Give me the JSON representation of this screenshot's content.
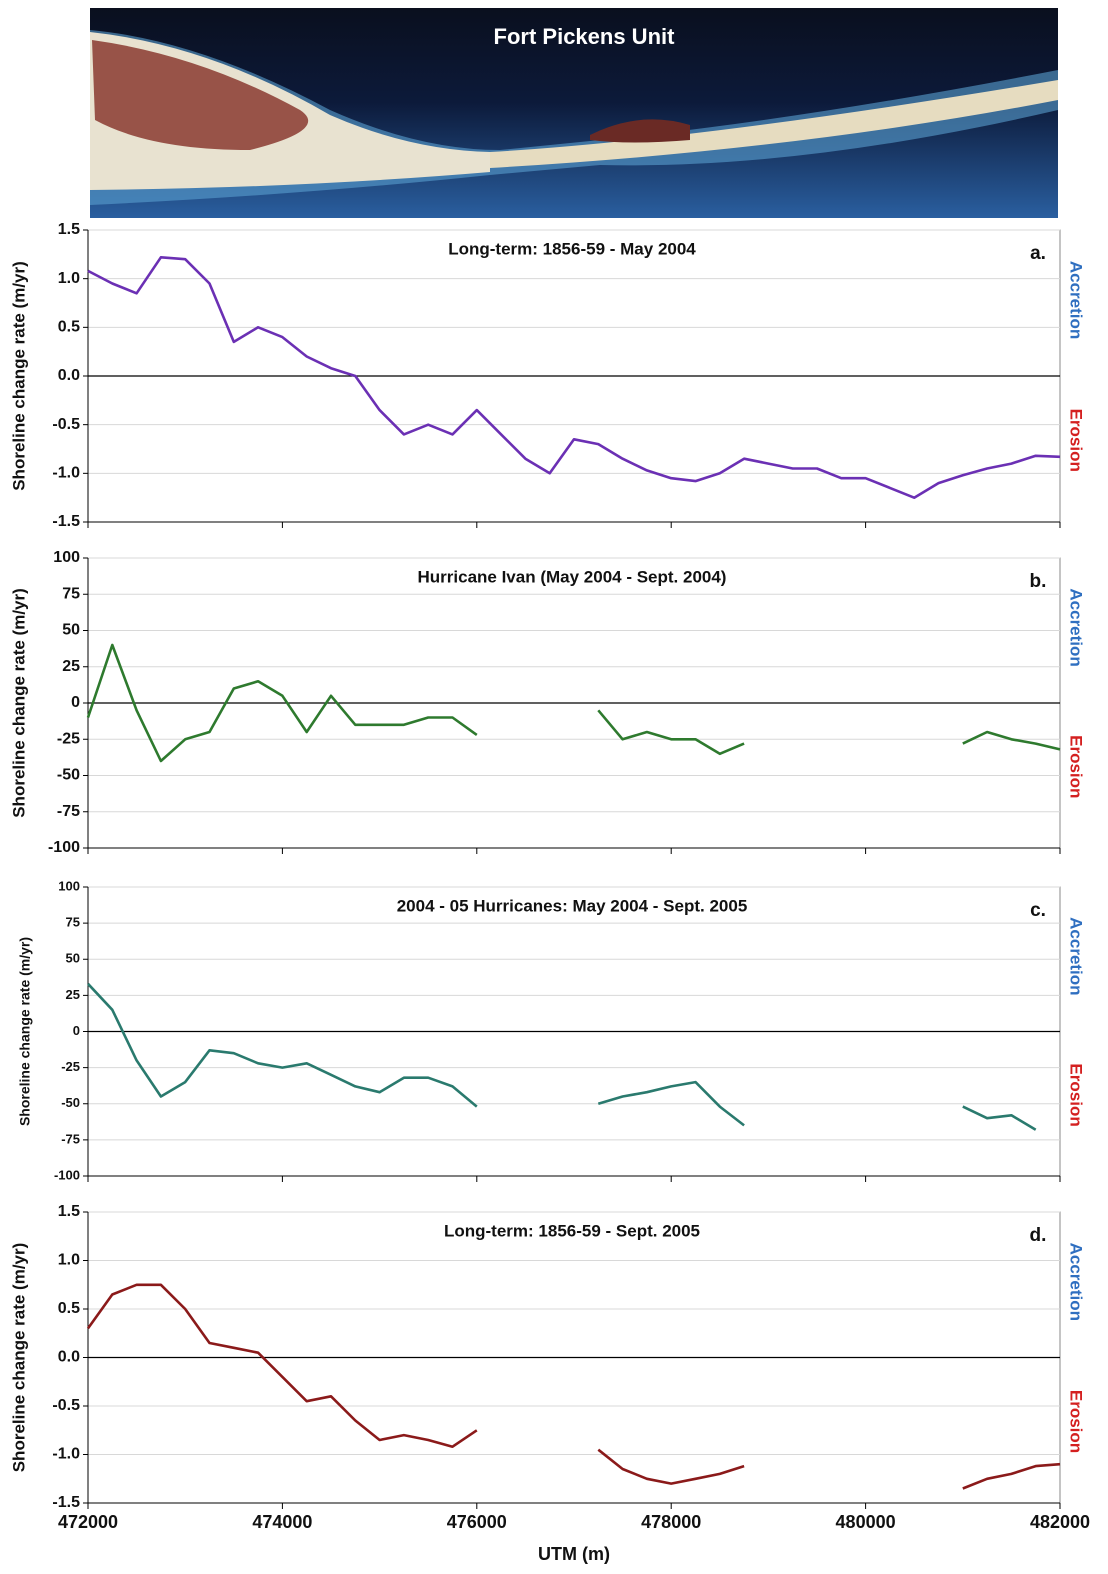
{
  "image": {
    "title": "Fort Pickens Unit"
  },
  "chart_data": [
    {
      "type": "line",
      "title": "Long-term: 1856-59 - May 2004",
      "panel_label": "a.",
      "ylabel": "Shoreline change rate (m/yr)",
      "accretion_label": "Accretion",
      "erosion_label": "Erosion",
      "x": [
        472000,
        472250,
        472500,
        472750,
        473000,
        473250,
        473500,
        473750,
        474000,
        474250,
        474500,
        474750,
        475000,
        475250,
        475500,
        475750,
        476000,
        476250,
        476500,
        476750,
        477000,
        477250,
        477500,
        477750,
        478000,
        478250,
        478500,
        478750,
        479000,
        479250,
        479500,
        479750,
        480000,
        480250,
        480500,
        480750,
        481000,
        481250,
        481500,
        481750,
        482000
      ],
      "series": [
        {
          "color": "#6b30b4",
          "values": [
            1.08,
            0.95,
            0.85,
            1.22,
            1.2,
            0.95,
            0.35,
            0.5,
            0.4,
            0.2,
            0.08,
            0.0,
            -0.35,
            -0.6,
            -0.5,
            -0.6,
            -0.35,
            -0.6,
            -0.85,
            -1.0,
            -0.65,
            -0.7,
            -0.85,
            -0.97,
            -1.05,
            -1.08,
            -1.0,
            -0.85,
            -0.9,
            -0.95,
            -0.95,
            -1.05,
            -1.05,
            -1.15,
            -1.25,
            -1.1,
            -1.02,
            -0.95,
            -0.9,
            -0.82,
            -0.83
          ]
        }
      ],
      "xlim": [
        472000,
        482000
      ],
      "xticks": [
        472000,
        474000,
        476000,
        478000,
        480000,
        482000
      ],
      "ylim": [
        -1.5,
        1.5
      ],
      "yticks": [
        -1.5,
        {
          "value": -1.0,
          "label": "-1.0"
        },
        -0.5,
        {
          "value": 0.0,
          "label": "0.0"
        },
        0.5,
        {
          "value": 1.0,
          "label": "1.0"
        },
        1.5
      ],
      "grid": true,
      "show_xtick_labels": false
    },
    {
      "type": "line",
      "title": "Hurricane Ivan (May 2004 - Sept. 2004)",
      "panel_label": "b.",
      "ylabel": "Shoreline change rate (m/yr)",
      "accretion_label": "Accretion",
      "erosion_label": "Erosion",
      "x": [
        472000,
        472250,
        472500,
        472750,
        473000,
        473250,
        473500,
        473750,
        474000,
        474250,
        474500,
        474750,
        475000,
        475250,
        475500,
        475750,
        476000,
        476250,
        476500,
        476750,
        477000,
        477250,
        477500,
        477750,
        478000,
        478250,
        478500,
        478750,
        479000,
        479250,
        479500,
        479750,
        480000,
        480250,
        480500,
        480750,
        481000,
        481250,
        481500,
        481750,
        482000
      ],
      "series": [
        {
          "color": "#2e7a2e",
          "values": [
            -10,
            40,
            -5,
            -40,
            -25,
            -20,
            10,
            15,
            5,
            -20,
            5,
            -15,
            -15,
            -15,
            -10,
            -10,
            -22,
            null,
            null,
            null,
            null,
            -5,
            -25,
            -20,
            -25,
            -25,
            -35,
            -28,
            null,
            null,
            null,
            null,
            null,
            null,
            null,
            null,
            -28,
            -20,
            -25,
            -28,
            -32
          ]
        }
      ],
      "xlim": [
        472000,
        482000
      ],
      "xticks": [
        472000,
        474000,
        476000,
        478000,
        480000,
        482000
      ],
      "ylim": [
        -100,
        100
      ],
      "yticks": [
        -100,
        -75,
        -50,
        -25,
        0,
        25,
        50,
        75,
        100
      ],
      "grid": true,
      "show_xtick_labels": false
    },
    {
      "type": "line",
      "title": "2004 - 05 Hurricanes: May 2004 - Sept. 2005",
      "panel_label": "c.",
      "ylabel": "Shoreline change rate (m/yr)",
      "accretion_label": "Accretion",
      "erosion_label": "Erosion",
      "x": [
        472000,
        472250,
        472500,
        472750,
        473000,
        473250,
        473500,
        473750,
        474000,
        474250,
        474500,
        474750,
        475000,
        475250,
        475500,
        475750,
        476000,
        476250,
        476500,
        476750,
        477000,
        477250,
        477500,
        477750,
        478000,
        478250,
        478500,
        478750,
        479000,
        479250,
        479500,
        479750,
        480000,
        480250,
        480500,
        480750,
        481000,
        481250,
        481500,
        481750,
        482000
      ],
      "series": [
        {
          "color": "#2a7a6e",
          "values": [
            33,
            15,
            -20,
            -45,
            -35,
            -13,
            -15,
            -22,
            -25,
            -22,
            -30,
            -38,
            -42,
            -32,
            -32,
            -38,
            -52,
            null,
            null,
            null,
            null,
            -50,
            -45,
            -42,
            -38,
            -35,
            -52,
            -65,
            null,
            null,
            null,
            null,
            null,
            null,
            null,
            null,
            -52,
            -60,
            -58,
            -68,
            null
          ]
        }
      ],
      "xlim": [
        472000,
        482000
      ],
      "xticks": [
        472000,
        474000,
        476000,
        478000,
        480000,
        482000
      ],
      "ylim": [
        -100,
        100
      ],
      "yticks": [
        -100,
        -75,
        -50,
        -25,
        0,
        25,
        50,
        75,
        100
      ],
      "grid": true,
      "show_xtick_labels": false
    },
    {
      "type": "line",
      "title": "Long-term: 1856-59 - Sept. 2005",
      "panel_label": "d.",
      "ylabel": "Shoreline change rate (m/yr)",
      "xlabel": "UTM (m)",
      "accretion_label": "Accretion",
      "erosion_label": "Erosion",
      "x": [
        472000,
        472250,
        472500,
        472750,
        473000,
        473250,
        473500,
        473750,
        474000,
        474250,
        474500,
        474750,
        475000,
        475250,
        475500,
        475750,
        476000,
        476250,
        476500,
        476750,
        477000,
        477250,
        477500,
        477750,
        478000,
        478250,
        478500,
        478750,
        479000,
        479250,
        479500,
        479750,
        480000,
        480250,
        480500,
        480750,
        481000,
        481250,
        481500,
        481750,
        482000
      ],
      "series": [
        {
          "color": "#8b1a1a",
          "values": [
            0.3,
            0.65,
            0.75,
            0.75,
            0.5,
            0.15,
            0.1,
            0.05,
            -0.2,
            -0.45,
            -0.4,
            -0.65,
            -0.85,
            -0.8,
            -0.85,
            -0.92,
            -0.75,
            null,
            null,
            null,
            null,
            -0.95,
            -1.15,
            -1.25,
            -1.3,
            -1.25,
            -1.2,
            -1.12,
            null,
            null,
            null,
            null,
            null,
            null,
            null,
            null,
            -1.35,
            -1.25,
            -1.2,
            -1.12,
            -1.1
          ]
        }
      ],
      "xlim": [
        472000,
        482000
      ],
      "xticks": [
        472000,
        474000,
        476000,
        478000,
        480000,
        482000
      ],
      "ylim": [
        -1.5,
        1.5
      ],
      "yticks": [
        -1.5,
        {
          "value": -1.0,
          "label": "-1.0"
        },
        -0.5,
        {
          "value": 0.0,
          "label": "0.0"
        },
        0.5,
        {
          "value": 1.0,
          "label": "1.0"
        },
        1.5
      ],
      "grid": true,
      "show_xtick_labels": true
    }
  ]
}
